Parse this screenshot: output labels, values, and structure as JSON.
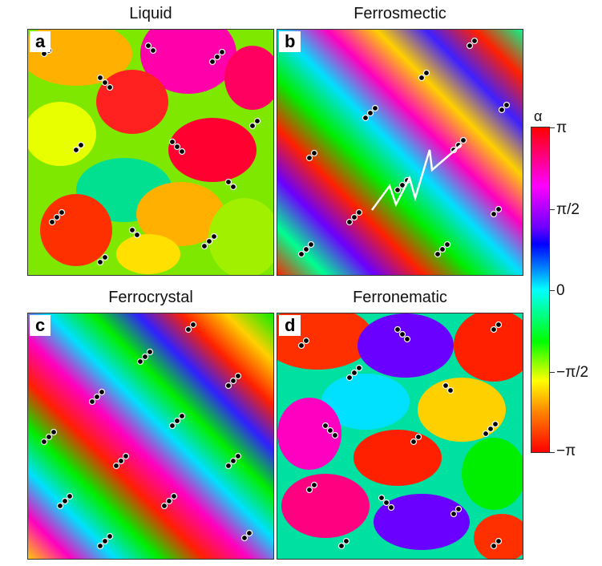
{
  "panels": [
    {
      "title": "Liquid",
      "label": "a"
    },
    {
      "title": "Ferrosmectic",
      "label": "b"
    },
    {
      "title": "Ferrocrystal",
      "label": "c"
    },
    {
      "title": "Ferronematic",
      "label": "d"
    }
  ],
  "colorbar": {
    "symbol": "α",
    "ticks": [
      "π",
      "π/2",
      "0",
      "−π/2",
      "−π"
    ]
  },
  "colors": {
    "zigzag": "#ffffff",
    "particle": "#000000"
  }
}
